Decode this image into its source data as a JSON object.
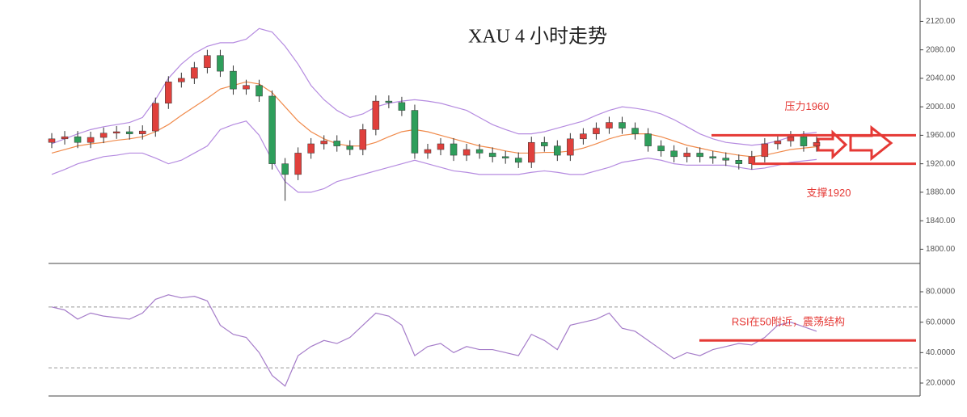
{
  "chart_data": [
    {
      "type": "candlestick",
      "title": "XAU 4 小时走势",
      "up_color": "#e0403c",
      "down_color": "#2e9e5b",
      "ylim": [
        1780,
        2150
      ],
      "yticks": [
        {
          "value": 2120,
          "label": "2120.00"
        },
        {
          "value": 2080,
          "label": "2080.00"
        },
        {
          "value": 2040,
          "label": "2040.00"
        },
        {
          "value": 2000,
          "label": "2000.00"
        },
        {
          "value": 1960,
          "label": "1960.00"
        },
        {
          "value": 1920,
          "label": "1920.00"
        },
        {
          "value": 1880,
          "label": "1880.00"
        },
        {
          "value": 1840,
          "label": "1840.00"
        },
        {
          "value": 1800,
          "label": "1800.00"
        }
      ],
      "open": [
        1950,
        1955,
        1958,
        1950,
        1957,
        1963,
        1965,
        1962,
        1966,
        2005,
        2035,
        2040,
        2055,
        2072,
        2050,
        2025,
        2030,
        2015,
        1920,
        1905,
        1935,
        1948,
        1952,
        1945,
        1940,
        1968,
        2008,
        2006,
        1995,
        1935,
        1940,
        1948,
        1932,
        1940,
        1935,
        1930,
        1928,
        1922,
        1950,
        1945,
        1932,
        1955,
        1962,
        1970,
        1978,
        1970,
        1962,
        1945,
        1938,
        1930,
        1935,
        1930,
        1928,
        1925,
        1920,
        1930,
        1948,
        1952,
        1958,
        1945
      ],
      "high": [
        1963,
        1966,
        1966,
        1965,
        1971,
        1973,
        1973,
        1974,
        2013,
        2043,
        2048,
        2063,
        2080,
        2080,
        2058,
        2038,
        2038,
        2023,
        1928,
        1943,
        1956,
        1960,
        1960,
        1953,
        1976,
        2016,
        2016,
        2014,
        2003,
        1948,
        1956,
        1956,
        1948,
        1948,
        1943,
        1938,
        1936,
        1958,
        1958,
        1953,
        1963,
        1970,
        1978,
        1986,
        1986,
        1978,
        1970,
        1953,
        1946,
        1943,
        1943,
        1938,
        1936,
        1933,
        1938,
        1956,
        1960,
        1966,
        1966,
        1958
      ],
      "low": [
        1942,
        1947,
        1942,
        1942,
        1949,
        1955,
        1954,
        1954,
        1958,
        1997,
        2027,
        2032,
        2047,
        2042,
        2017,
        2017,
        2007,
        1912,
        1868,
        1897,
        1927,
        1940,
        1937,
        1932,
        1932,
        1960,
        1998,
        1987,
        1927,
        1927,
        1932,
        1924,
        1924,
        1927,
        1922,
        1920,
        1914,
        1914,
        1937,
        1924,
        1924,
        1947,
        1954,
        1962,
        1962,
        1954,
        1937,
        1930,
        1922,
        1922,
        1922,
        1920,
        1917,
        1912,
        1912,
        1922,
        1940,
        1944,
        1937,
        1937
      ],
      "close": [
        1955,
        1958,
        1950,
        1957,
        1963,
        1965,
        1962,
        1966,
        2005,
        2035,
        2040,
        2055,
        2072,
        2050,
        2025,
        2030,
        2015,
        1920,
        1905,
        1935,
        1948,
        1952,
        1945,
        1940,
        1968,
        2008,
        2006,
        1995,
        1935,
        1940,
        1948,
        1932,
        1940,
        1935,
        1930,
        1928,
        1922,
        1950,
        1945,
        1932,
        1955,
        1962,
        1970,
        1978,
        1970,
        1962,
        1945,
        1938,
        1930,
        1935,
        1930,
        1928,
        1925,
        1920,
        1930,
        1948,
        1952,
        1958,
        1945,
        1950
      ],
      "series": [
        {
          "color": "#b58be0",
          "values": [
            1948,
            1955,
            1962,
            1968,
            1972,
            1975,
            1978,
            1985,
            2010,
            2040,
            2060,
            2075,
            2085,
            2090,
            2090,
            2095,
            2110,
            2105,
            2085,
            2060,
            2030,
            2010,
            1995,
            1985,
            1990,
            2000,
            2005,
            2008,
            2010,
            2008,
            2005,
            2000,
            1995,
            1985,
            1975,
            1968,
            1962,
            1962,
            1965,
            1970,
            1975,
            1980,
            1988,
            1995,
            2000,
            1998,
            1995,
            1990,
            1982,
            1972,
            1962,
            1955,
            1950,
            1948,
            1946,
            1948,
            1952,
            1958,
            1962,
            1964
          ]
        },
        {
          "color": "#f08a4b",
          "values": [
            1935,
            1940,
            1945,
            1948,
            1950,
            1953,
            1955,
            1958,
            1965,
            1975,
            1988,
            2000,
            2012,
            2025,
            2030,
            2035,
            2032,
            2020,
            2000,
            1980,
            1965,
            1955,
            1948,
            1945,
            1945,
            1950,
            1958,
            1965,
            1968,
            1965,
            1960,
            1955,
            1950,
            1945,
            1942,
            1938,
            1935,
            1935,
            1936,
            1936,
            1938,
            1942,
            1948,
            1955,
            1960,
            1962,
            1962,
            1958,
            1952,
            1946,
            1942,
            1938,
            1935,
            1932,
            1930,
            1932,
            1936,
            1940,
            1942,
            1944
          ]
        },
        {
          "color": "#b58be0",
          "values": [
            1905,
            1912,
            1920,
            1925,
            1930,
            1932,
            1935,
            1935,
            1928,
            1920,
            1925,
            1935,
            1945,
            1968,
            1975,
            1980,
            1960,
            1925,
            1895,
            1880,
            1880,
            1885,
            1895,
            1900,
            1905,
            1910,
            1915,
            1920,
            1925,
            1920,
            1915,
            1910,
            1908,
            1905,
            1905,
            1905,
            1905,
            1908,
            1910,
            1908,
            1905,
            1905,
            1910,
            1915,
            1922,
            1925,
            1928,
            1925,
            1920,
            1918,
            1918,
            1918,
            1918,
            1915,
            1912,
            1914,
            1918,
            1922,
            1924,
            1926
          ]
        }
      ],
      "annotations": [
        {
          "text": "压力1960",
          "value": 1960,
          "color": "#e53935"
        },
        {
          "text": "支撑1920",
          "value": 1920,
          "color": "#e53935"
        }
      ]
    },
    {
      "type": "line",
      "ylim": [
        11.5,
        98.6
      ],
      "yticks": [
        {
          "value": 80,
          "label": "80.0000"
        },
        {
          "value": 60,
          "label": "60.0000"
        },
        {
          "value": 40,
          "label": "40.0000"
        },
        {
          "value": 20,
          "label": "20.0000"
        }
      ],
      "levels": [
        70,
        30
      ],
      "series": [
        {
          "color": "#a57cc9",
          "values": [
            70,
            68,
            62,
            66,
            64,
            63,
            62,
            66,
            75,
            78,
            76,
            77,
            74,
            58,
            52,
            50,
            40,
            25,
            18,
            38,
            44,
            48,
            46,
            50,
            58,
            66,
            64,
            58,
            38,
            44,
            46,
            40,
            44,
            42,
            42,
            40,
            38,
            52,
            48,
            42,
            58,
            60,
            62,
            66,
            56,
            54,
            48,
            42,
            36,
            40,
            38,
            42,
            44,
            46,
            45,
            50,
            58,
            60,
            57,
            54
          ]
        }
      ],
      "annotations": [
        {
          "text": "RSI在50附近，震荡结构",
          "value": 48,
          "color": "#e53935"
        }
      ]
    }
  ]
}
